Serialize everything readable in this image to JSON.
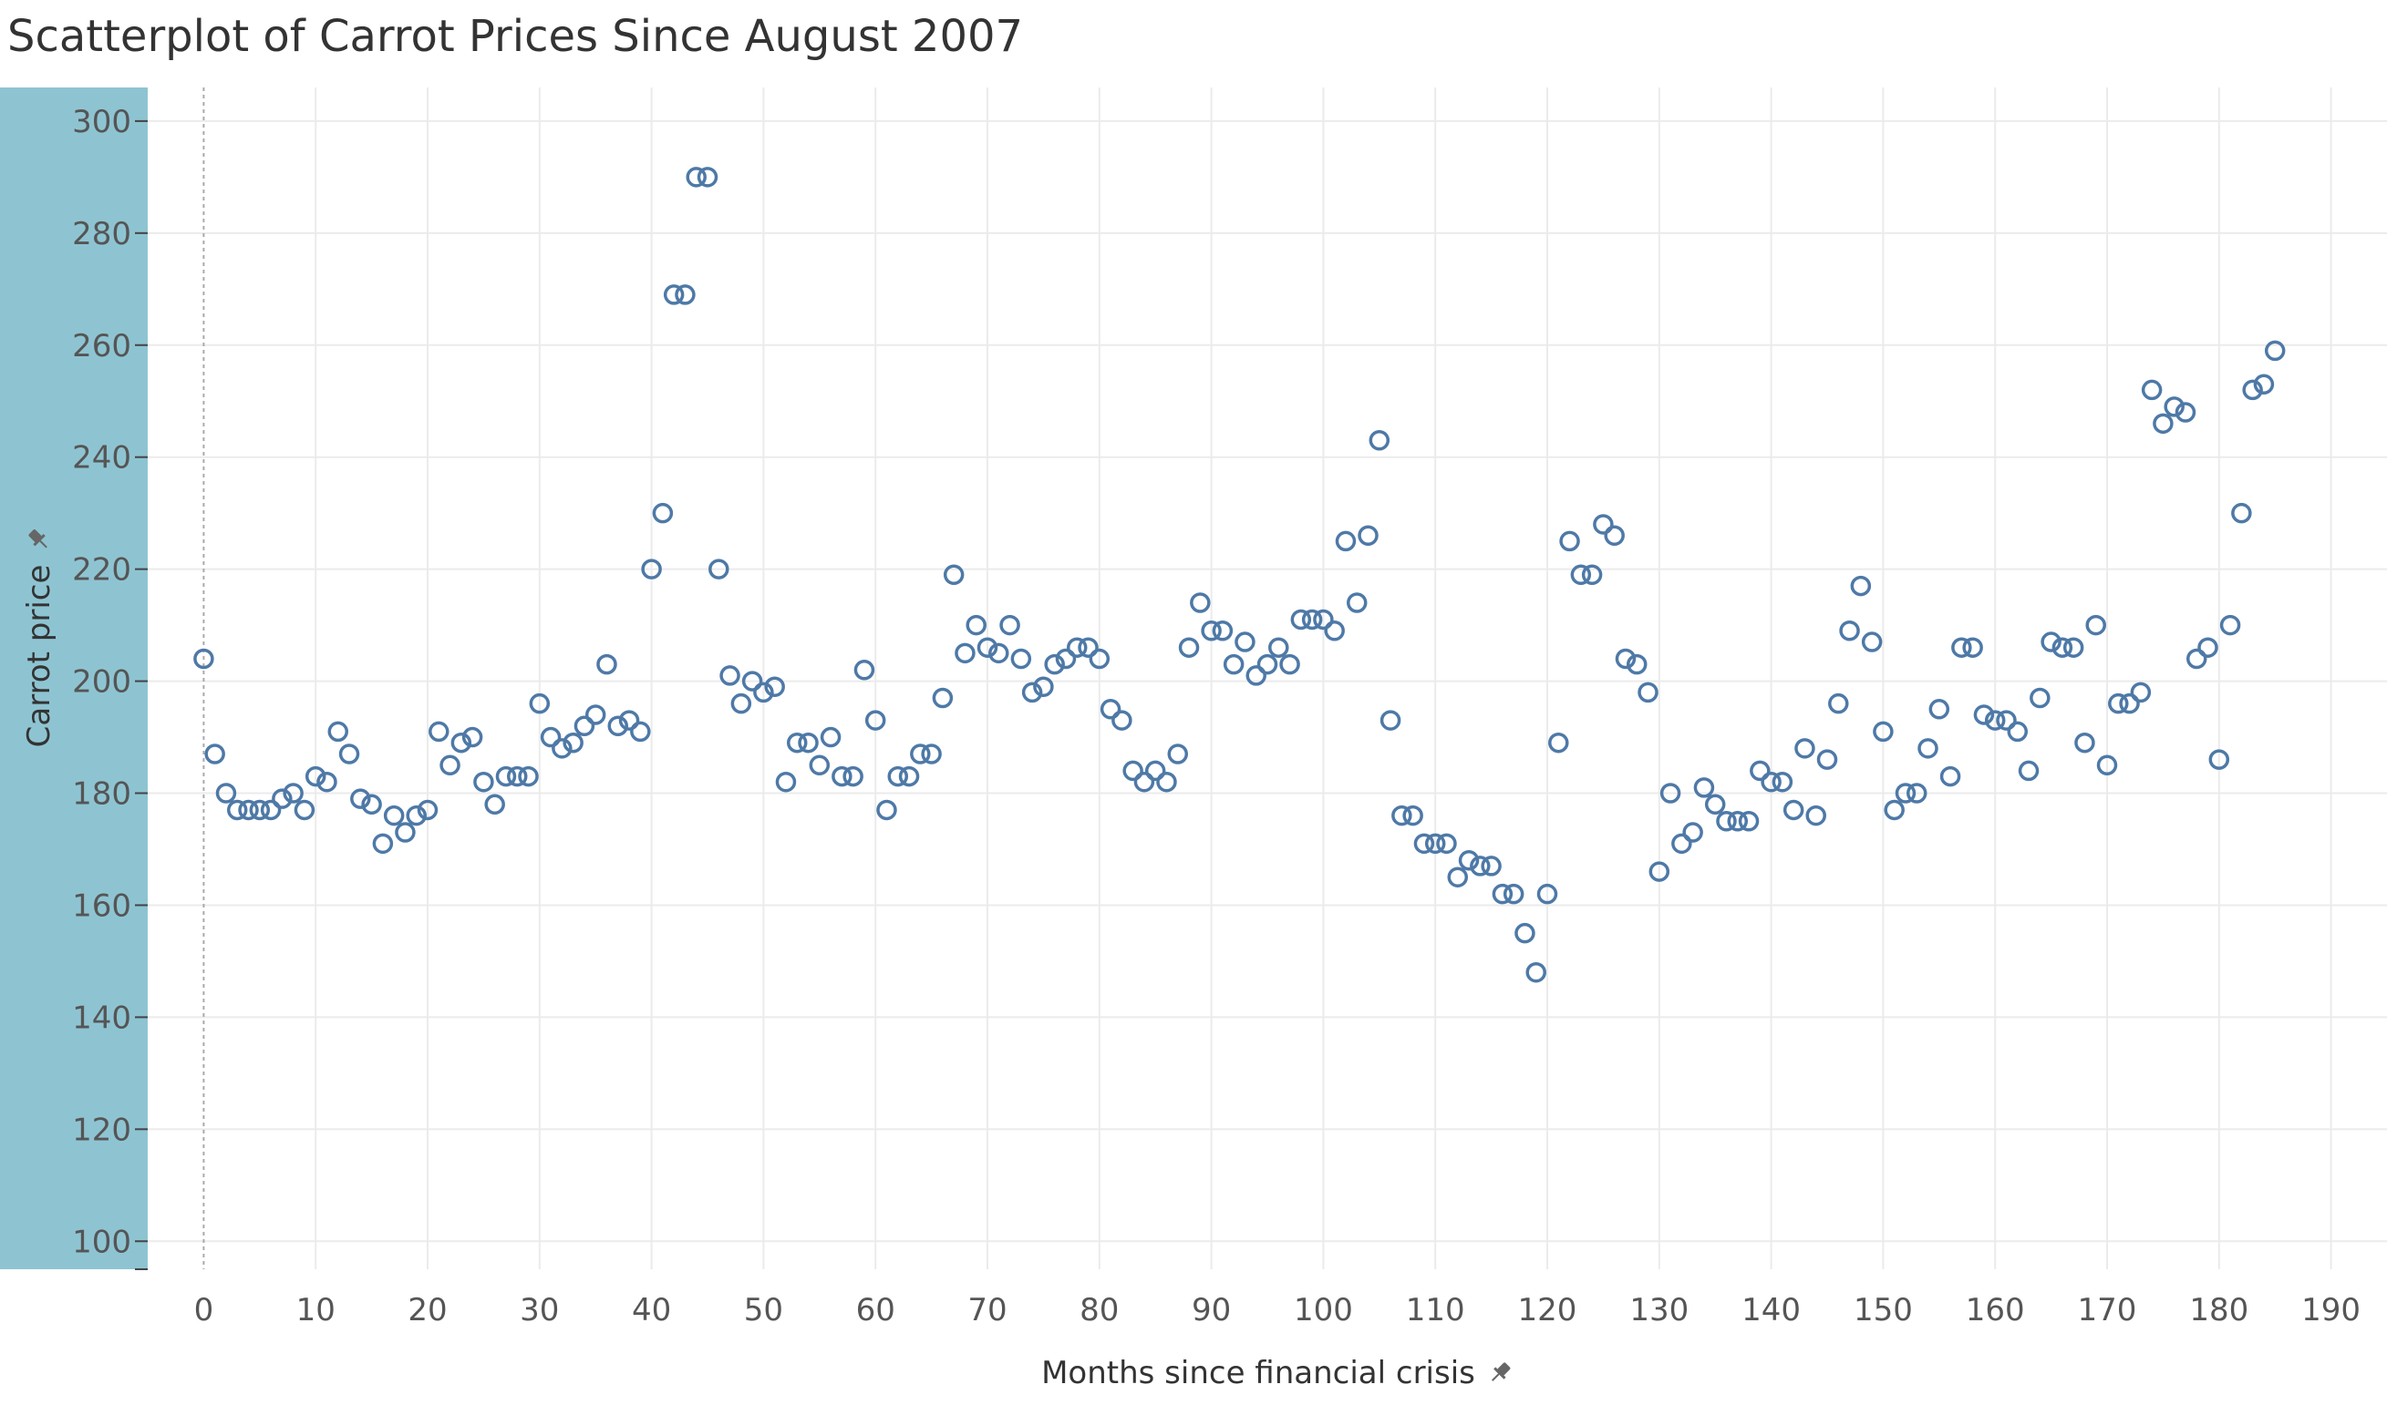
{
  "chart_data": {
    "type": "scatter",
    "title": "Scatterplot of Carrot Prices Since August 2007",
    "xlabel": "Months since financial crisis",
    "ylabel": "Carrot price",
    "xlim": [
      -5,
      195
    ],
    "ylim": [
      95,
      306
    ],
    "x_ticks": [
      0,
      10,
      20,
      30,
      40,
      50,
      60,
      70,
      80,
      90,
      100,
      110,
      120,
      130,
      140,
      150,
      160,
      170,
      180,
      190
    ],
    "y_ticks": [
      100,
      120,
      140,
      160,
      180,
      200,
      220,
      240,
      260,
      280,
      300
    ],
    "grid": true,
    "marker": "hollow-circle",
    "colors": {
      "marker": "#4e79a7",
      "y_axis_band": "#8ec4d2",
      "gridline": "#ebebeb",
      "zero_line": "#aaaaaa"
    },
    "icons": {
      "axis_pin": "pin-icon"
    },
    "x": [
      0,
      1,
      2,
      3,
      4,
      5,
      6,
      7,
      8,
      9,
      10,
      11,
      12,
      13,
      14,
      15,
      16,
      17,
      18,
      19,
      20,
      21,
      22,
      23,
      24,
      25,
      26,
      27,
      28,
      29,
      30,
      31,
      32,
      33,
      34,
      35,
      36,
      37,
      38,
      39,
      40,
      41,
      42,
      43,
      44,
      45,
      46,
      47,
      48,
      49,
      50,
      51,
      52,
      53,
      54,
      55,
      56,
      57,
      58,
      59,
      60,
      61,
      62,
      63,
      64,
      65,
      66,
      67,
      68,
      69,
      70,
      71,
      72,
      73,
      74,
      75,
      76,
      77,
      78,
      79,
      80,
      81,
      82,
      83,
      84,
      85,
      86,
      87,
      88,
      89,
      90,
      91,
      92,
      93,
      94,
      95,
      96,
      97,
      98,
      99,
      100,
      101,
      102,
      103,
      104,
      105,
      106,
      107,
      108,
      109,
      110,
      111,
      112,
      113,
      114,
      115,
      116,
      117,
      118,
      119,
      120,
      121,
      122,
      123,
      124,
      125,
      126,
      127,
      128,
      129,
      130,
      131,
      132,
      133,
      134,
      135,
      136,
      137,
      138,
      139,
      140,
      141,
      142,
      143,
      144,
      145,
      146,
      147,
      148,
      149,
      150,
      151,
      152,
      153,
      154,
      155,
      156,
      157,
      158,
      159,
      160,
      161,
      162,
      163,
      164,
      165,
      166,
      167,
      168,
      169,
      170,
      171,
      172,
      173,
      174,
      175,
      176,
      177,
      178,
      179,
      180,
      181,
      182,
      183,
      184,
      185
    ],
    "y": [
      204,
      187,
      180,
      177,
      177,
      177,
      177,
      179,
      180,
      177,
      183,
      182,
      191,
      187,
      179,
      178,
      171,
      176,
      173,
      176,
      177,
      191,
      185,
      189,
      190,
      182,
      178,
      183,
      183,
      183,
      196,
      190,
      188,
      189,
      192,
      194,
      203,
      192,
      193,
      191,
      220,
      230,
      269,
      269,
      290,
      290,
      220,
      201,
      196,
      200,
      198,
      199,
      182,
      189,
      189,
      185,
      190,
      183,
      183,
      202,
      193,
      177,
      183,
      183,
      187,
      187,
      197,
      219,
      205,
      210,
      206,
      205,
      210,
      204,
      198,
      199,
      203,
      204,
      206,
      206,
      204,
      195,
      193,
      184,
      182,
      184,
      182,
      187,
      206,
      214,
      209,
      209,
      203,
      207,
      201,
      203,
      206,
      203,
      211,
      211,
      211,
      209,
      225,
      214,
      226,
      243,
      193,
      176,
      176,
      171,
      171,
      171,
      165,
      168,
      167,
      167,
      162,
      162,
      155,
      148,
      162,
      189,
      225,
      219,
      219,
      228,
      226,
      204,
      203,
      198,
      166,
      180,
      171,
      173,
      181,
      178,
      175,
      175,
      175,
      184,
      182,
      182,
      177,
      188,
      176,
      186,
      196,
      209,
      217,
      207,
      191,
      177,
      180,
      180,
      188,
      195,
      183,
      206,
      206,
      194,
      193,
      193,
      191,
      184,
      197,
      207,
      206,
      206,
      189,
      210,
      185,
      196,
      196,
      198,
      252,
      246,
      249,
      248,
      204,
      206,
      186,
      210,
      230,
      252,
      253,
      259
    ]
  }
}
